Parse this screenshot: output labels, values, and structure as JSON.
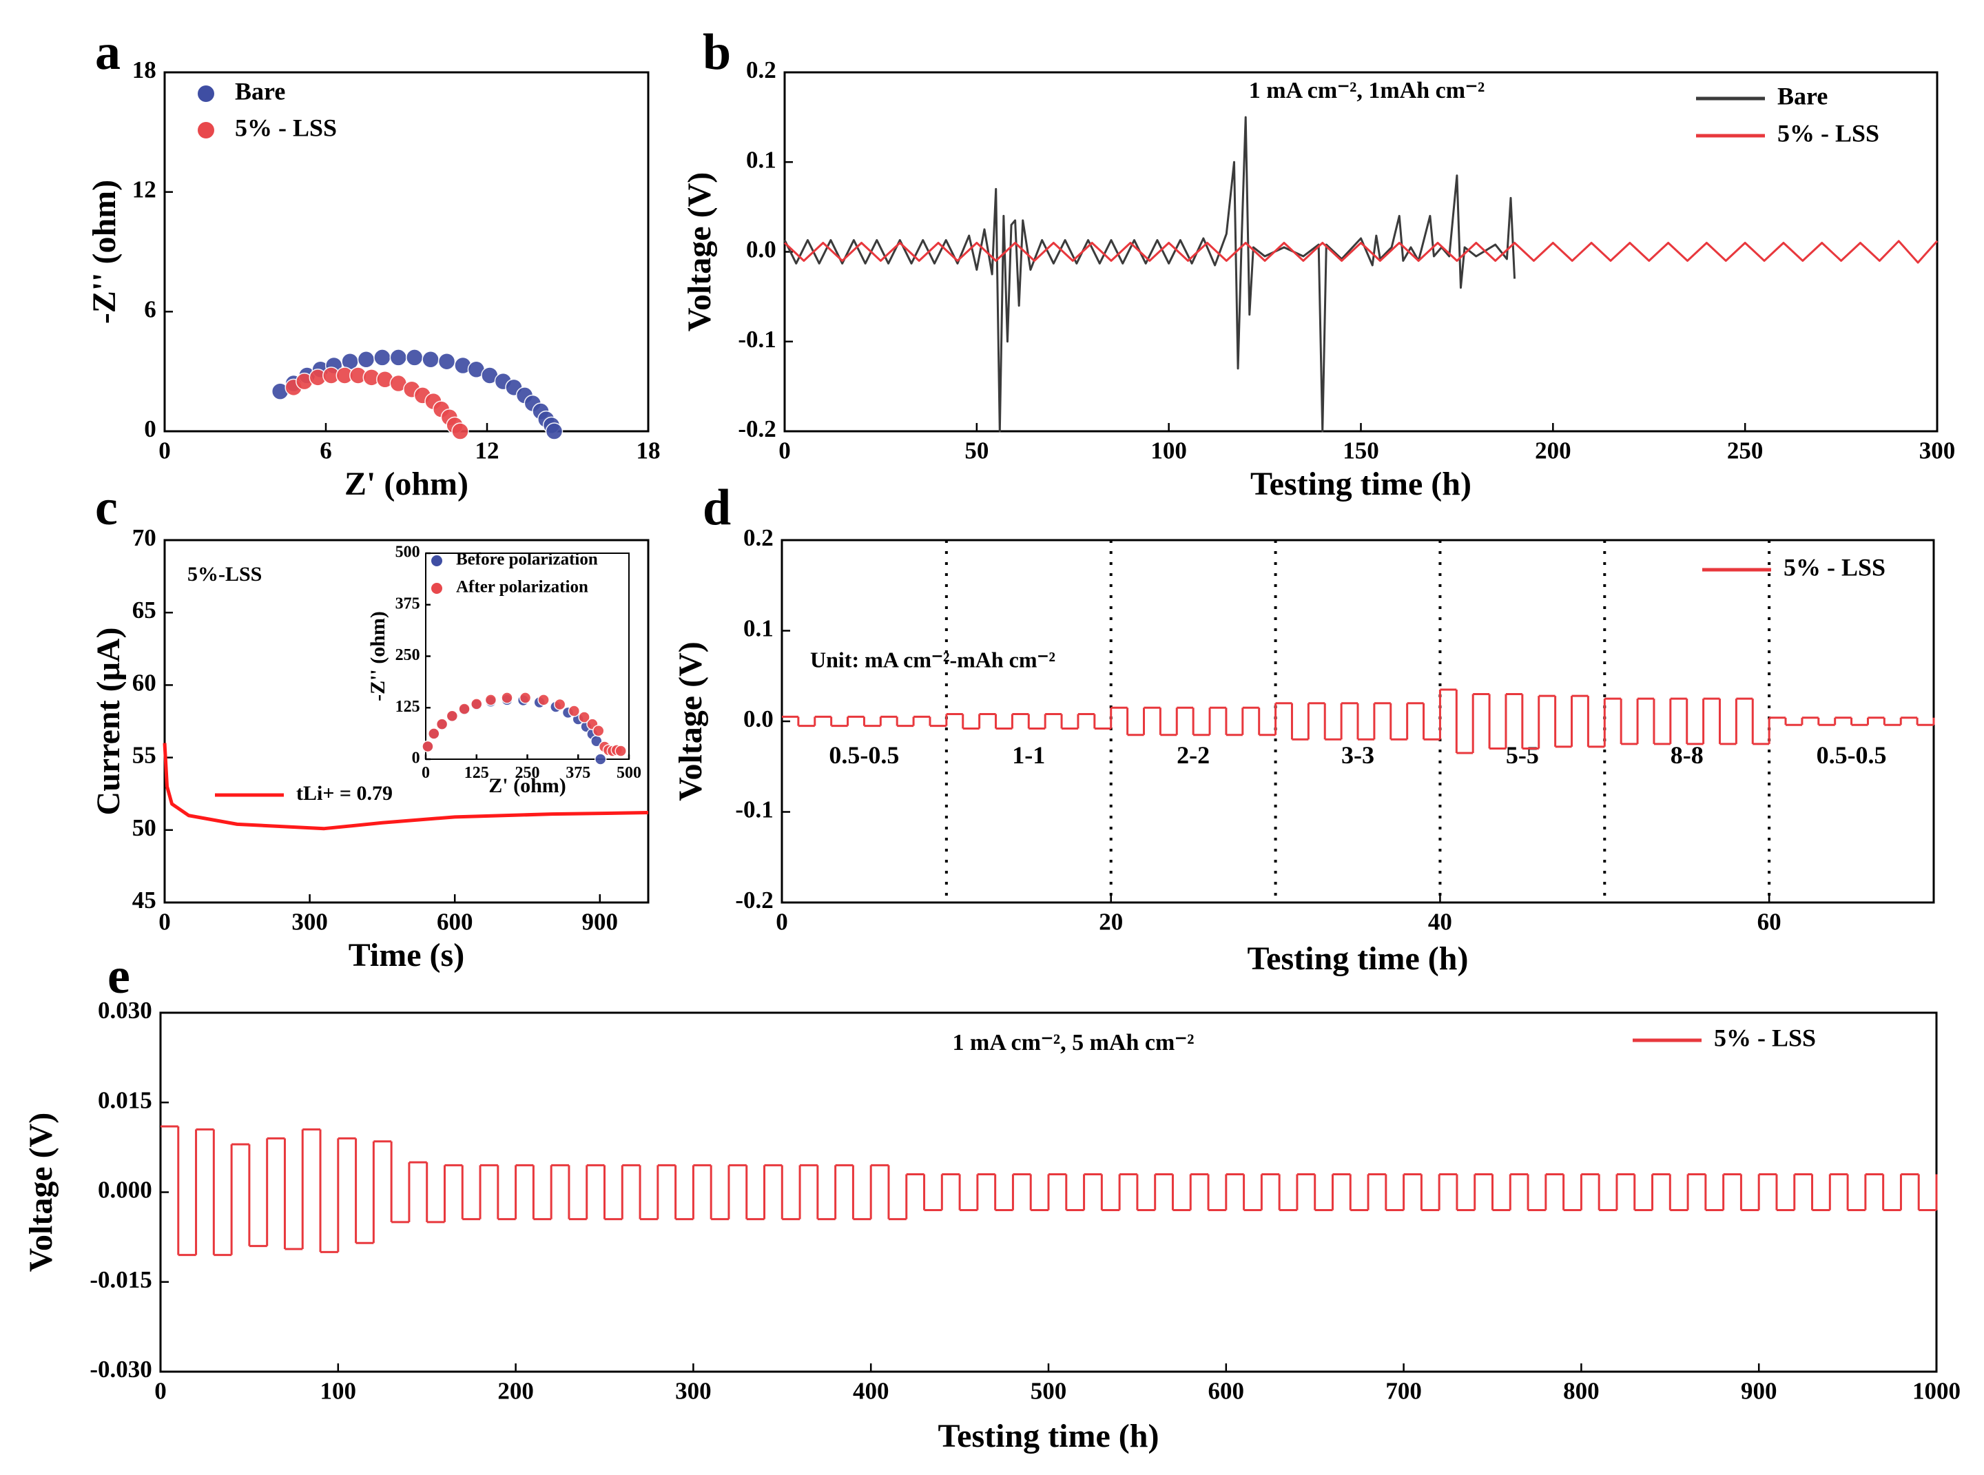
{
  "chart_data": [
    {
      "type": "scatter",
      "label": "a",
      "x_label": "Z' (ohm)",
      "y_label": "-Z'' (ohm)",
      "xlim": [
        0,
        18
      ],
      "xticks": [
        0,
        6,
        12,
        18
      ],
      "ylim": [
        0,
        18
      ],
      "yticks": [
        0,
        6,
        12,
        18
      ],
      "legend": "upper left",
      "series": [
        {
          "name": "Bare",
          "color": "#3f4ea3",
          "x": [
            4.3,
            4.8,
            5.3,
            5.8,
            6.3,
            6.9,
            7.5,
            8.1,
            8.7,
            9.3,
            9.9,
            10.5,
            11.1,
            11.6,
            12.1,
            12.6,
            13.0,
            13.4,
            13.7,
            14.0,
            14.2,
            14.4,
            14.5
          ],
          "values": [
            2.0,
            2.4,
            2.8,
            3.1,
            3.3,
            3.5,
            3.6,
            3.7,
            3.7,
            3.7,
            3.6,
            3.5,
            3.3,
            3.1,
            2.8,
            2.5,
            2.2,
            1.8,
            1.4,
            1.0,
            0.6,
            0.3,
            0.0
          ]
        },
        {
          "name": "5% - LSS",
          "color": "#e8484c",
          "x": [
            4.8,
            5.2,
            5.7,
            6.2,
            6.7,
            7.2,
            7.7,
            8.2,
            8.7,
            9.2,
            9.6,
            10.0,
            10.3,
            10.6,
            10.8,
            11.0
          ],
          "values": [
            2.2,
            2.5,
            2.7,
            2.8,
            2.8,
            2.8,
            2.7,
            2.6,
            2.4,
            2.1,
            1.8,
            1.5,
            1.1,
            0.7,
            0.3,
            0.0
          ]
        }
      ]
    },
    {
      "type": "line",
      "label": "b",
      "x_label": "Testing time (h)",
      "y_label": "Voltage (V)",
      "annotation": "1 mA cm⁻², 1mAh cm⁻²",
      "xlim": [
        0,
        300
      ],
      "xticks": [
        0,
        50,
        100,
        150,
        200,
        250,
        300
      ],
      "ylim": [
        -0.2,
        0.2
      ],
      "yticks": [
        -0.2,
        -0.1,
        {
          "value": 0,
          "label": "0.0"
        },
        0.1,
        0.2
      ],
      "legend": "upper right",
      "series": [
        {
          "name": "Bare",
          "color": "#3b3b3b",
          "x": [
            0,
            3,
            6,
            9,
            12,
            15,
            18,
            21,
            24,
            27,
            30,
            33,
            36,
            39,
            42,
            45,
            48,
            50,
            52,
            54,
            55,
            56,
            57,
            58,
            59,
            60,
            61,
            62,
            64,
            67,
            70,
            73,
            76,
            79,
            82,
            85,
            88,
            91,
            94,
            97,
            100,
            103,
            106,
            109,
            112,
            115,
            117,
            118,
            119,
            120,
            121,
            122,
            125,
            130,
            135,
            139,
            140,
            141,
            145,
            150,
            153,
            154,
            155,
            158,
            160,
            161,
            163,
            165,
            168,
            169,
            171,
            173,
            175,
            176,
            177,
            180,
            185,
            188,
            189,
            190
          ],
          "values": [
            0.013,
            -0.013,
            0.013,
            -0.013,
            0.013,
            -0.013,
            0.013,
            -0.013,
            0.013,
            -0.013,
            0.013,
            -0.013,
            0.013,
            -0.013,
            0.013,
            -0.013,
            0.018,
            -0.02,
            0.025,
            -0.025,
            0.07,
            -0.2,
            0.04,
            -0.1,
            0.03,
            0.035,
            -0.06,
            0.035,
            -0.02,
            0.013,
            -0.013,
            0.013,
            -0.013,
            0.013,
            -0.013,
            0.013,
            -0.013,
            0.013,
            -0.013,
            0.013,
            -0.013,
            0.013,
            -0.013,
            0.015,
            -0.015,
            0.02,
            0.1,
            -0.13,
            0.02,
            0.15,
            -0.07,
            0.005,
            -0.005,
            0.005,
            -0.005,
            0.008,
            -0.2,
            0.008,
            -0.008,
            0.015,
            -0.015,
            0.018,
            -0.008,
            0.005,
            0.04,
            -0.01,
            0.005,
            -0.01,
            0.04,
            -0.005,
            0.005,
            -0.005,
            0.085,
            -0.04,
            0.005,
            -0.005,
            0.008,
            -0.008,
            0.06,
            -0.03
          ]
        },
        {
          "name": "5% - LSS",
          "color": "#e8383d",
          "x": [
            0,
            5,
            10,
            15,
            20,
            25,
            30,
            35,
            40,
            45,
            50,
            55,
            60,
            65,
            70,
            75,
            80,
            85,
            90,
            95,
            100,
            105,
            110,
            115,
            120,
            125,
            130,
            135,
            140,
            145,
            150,
            155,
            160,
            165,
            170,
            175,
            180,
            185,
            190,
            195,
            200,
            205,
            210,
            215,
            220,
            225,
            230,
            235,
            240,
            245,
            250,
            255,
            260,
            265,
            270,
            275,
            280,
            285,
            290,
            295,
            300
          ],
          "values": [
            0.01,
            -0.01,
            0.01,
            -0.01,
            0.01,
            -0.01,
            0.01,
            -0.01,
            0.01,
            -0.01,
            0.01,
            -0.01,
            0.01,
            -0.01,
            0.01,
            -0.01,
            0.01,
            -0.01,
            0.01,
            -0.01,
            0.01,
            -0.01,
            0.01,
            -0.01,
            0.01,
            -0.01,
            0.01,
            -0.01,
            0.01,
            -0.01,
            0.01,
            -0.01,
            0.01,
            -0.01,
            0.01,
            -0.01,
            0.01,
            -0.01,
            0.01,
            -0.01,
            0.01,
            -0.01,
            0.01,
            -0.01,
            0.01,
            -0.01,
            0.01,
            -0.01,
            0.01,
            -0.01,
            0.01,
            -0.01,
            0.01,
            -0.01,
            0.01,
            -0.01,
            0.01,
            -0.01,
            0.012,
            -0.012,
            0.012
          ]
        }
      ]
    },
    {
      "type": "line",
      "label": "c",
      "x_label": "Time (s)",
      "y_label": "Current (μA)",
      "annotation": "5%-LSS",
      "xlim": [
        0,
        1000
      ],
      "xticks": [
        0,
        300,
        600,
        900
      ],
      "ylim": [
        45,
        70
      ],
      "yticks": [
        45,
        50,
        55,
        60,
        65,
        70
      ],
      "legend": "lower left",
      "series": [
        {
          "name": "tLi+ = 0.79",
          "color": "#ff1a1a",
          "x": [
            0,
            5,
            15,
            50,
            150,
            330,
            450,
            600,
            800,
            1000
          ],
          "values": [
            56,
            53,
            51.8,
            51,
            50.4,
            50.1,
            50.5,
            50.9,
            51.1,
            51.2
          ]
        }
      ]
    },
    {
      "type": "scatter",
      "x_label": "Z' (ohm)",
      "y_label": "-Z'' (ohm)",
      "xlim": [
        0,
        500
      ],
      "xticks": [
        0,
        125,
        250,
        375,
        500
      ],
      "ylim": [
        0,
        500
      ],
      "yticks": [
        0,
        125,
        250,
        375,
        500
      ],
      "legend": "upper right",
      "series": [
        {
          "name": "Before polarization",
          "color": "#3f4ea3",
          "x": [
            5,
            20,
            40,
            65,
            95,
            125,
            160,
            200,
            240,
            280,
            320,
            350,
            375,
            395,
            410,
            420,
            430
          ],
          "values": [
            31,
            61,
            84,
            104,
            120,
            132,
            140,
            144,
            143,
            138,
            127,
            113,
            97,
            79,
            61,
            44,
            0
          ]
        },
        {
          "name": "After polarization",
          "color": "#e8484c",
          "x": [
            5,
            20,
            40,
            65,
            95,
            125,
            160,
            200,
            245,
            290,
            330,
            365,
            390,
            410,
            425,
            440,
            450,
            460,
            470,
            480
          ],
          "values": [
            31,
            62,
            85,
            105,
            122,
            134,
            144,
            149,
            149,
            144,
            133,
            117,
            102,
            85,
            69,
            30,
            22,
            20,
            22,
            20
          ]
        }
      ]
    },
    {
      "type": "line",
      "step": "post",
      "label": "d",
      "x_label": "Testing time (h)",
      "y_label": "Voltage (V)",
      "annotation": "Unit: mA cm⁻²-mAh cm⁻²",
      "xlim": [
        0,
        70
      ],
      "xticks": [
        0,
        20,
        40,
        60
      ],
      "ylim": [
        -0.2,
        0.2
      ],
      "yticks": [
        -0.2,
        -0.1,
        {
          "value": 0,
          "label": "0.0"
        },
        0.1,
        0.2
      ],
      "legend": "upper right",
      "vlines": [
        10,
        20,
        30,
        40,
        50,
        60
      ],
      "segment_labels": [
        "0.5-0.5",
        "1-1",
        "2-2",
        "3-3",
        "5-5",
        "8-8",
        "0.5-0.5"
      ],
      "series": [
        {
          "name": "5% - LSS",
          "color": "#e8383d",
          "x": [
            0,
            1,
            2,
            3,
            4,
            5,
            6,
            7,
            8,
            9,
            10,
            11,
            12,
            13,
            14,
            15,
            16,
            17,
            18,
            19,
            20,
            21,
            22,
            23,
            24,
            25,
            26,
            27,
            28,
            29,
            30,
            31,
            32,
            33,
            34,
            35,
            36,
            37,
            38,
            39,
            40,
            41,
            42,
            43,
            44,
            45,
            46,
            47,
            48,
            49,
            50,
            51,
            52,
            53,
            54,
            55,
            56,
            57,
            58,
            59,
            60,
            61,
            62,
            63,
            64,
            65,
            66,
            67,
            68,
            69,
            70
          ],
          "values": [
            0.005,
            -0.005,
            0.005,
            -0.005,
            0.005,
            -0.005,
            0.005,
            -0.005,
            0.005,
            -0.005,
            0.008,
            -0.008,
            0.008,
            -0.008,
            0.008,
            -0.008,
            0.008,
            -0.008,
            0.008,
            -0.008,
            0.015,
            -0.015,
            0.015,
            -0.015,
            0.015,
            -0.015,
            0.015,
            -0.015,
            0.015,
            -0.015,
            0.02,
            -0.02,
            0.02,
            -0.02,
            0.02,
            -0.02,
            0.02,
            -0.02,
            0.02,
            -0.02,
            0.035,
            -0.035,
            0.03,
            -0.03,
            0.03,
            -0.03,
            0.028,
            -0.028,
            0.028,
            -0.028,
            0.025,
            -0.025,
            0.025,
            -0.025,
            0.025,
            -0.025,
            0.025,
            -0.025,
            0.025,
            -0.025,
            0.004,
            -0.004,
            0.004,
            -0.004,
            0.004,
            -0.004,
            0.004,
            -0.004,
            0.004,
            -0.004,
            0.004
          ]
        }
      ]
    },
    {
      "type": "line",
      "step": "post",
      "label": "e",
      "x_label": "Testing time (h)",
      "y_label": "Voltage (V)",
      "annotation": "1 mA cm⁻², 5 mAh cm⁻²",
      "xlim": [
        0,
        1000
      ],
      "xticks": [
        0,
        100,
        200,
        300,
        400,
        500,
        600,
        700,
        800,
        900,
        1000
      ],
      "ylim": [
        -0.03,
        0.03
      ],
      "yticks": [
        {
          "value": -0.03,
          "label": "-0.030"
        },
        {
          "value": -0.015,
          "label": "-0.015"
        },
        {
          "value": 0,
          "label": "0.000"
        },
        {
          "value": 0.015,
          "label": "0.015"
        },
        {
          "value": 0.03,
          "label": "0.030"
        }
      ],
      "legend": "upper right",
      "series": [
        {
          "name": "5% - LSS",
          "color": "#e8383d",
          "x": [
            0,
            10,
            20,
            30,
            40,
            50,
            60,
            70,
            80,
            90,
            100,
            110,
            120,
            130,
            140,
            150,
            160,
            170,
            180,
            190,
            200,
            210,
            220,
            230,
            240,
            250,
            260,
            270,
            280,
            290,
            300,
            310,
            320,
            330,
            340,
            350,
            360,
            370,
            380,
            390,
            400,
            410,
            420,
            430,
            440,
            450,
            460,
            470,
            480,
            490,
            500,
            510,
            520,
            530,
            540,
            550,
            560,
            570,
            580,
            590,
            600,
            610,
            620,
            630,
            640,
            650,
            660,
            670,
            680,
            690,
            700,
            710,
            720,
            730,
            740,
            750,
            760,
            770,
            780,
            790,
            800,
            810,
            820,
            830,
            840,
            850,
            860,
            870,
            880,
            890,
            900,
            910,
            920,
            930,
            940,
            950,
            960,
            970,
            980,
            990,
            1000
          ],
          "values": [
            0.011,
            -0.0105,
            0.0105,
            -0.0105,
            0.008,
            -0.009,
            0.009,
            -0.0095,
            0.0105,
            -0.01,
            0.009,
            -0.0085,
            0.0085,
            -0.005,
            0.005,
            -0.005,
            0.0045,
            -0.0045,
            0.0045,
            -0.0045,
            0.0045,
            -0.0045,
            0.0045,
            -0.0045,
            0.0045,
            -0.0045,
            0.0045,
            -0.0045,
            0.0045,
            -0.0045,
            0.0045,
            -0.0045,
            0.0045,
            -0.0045,
            0.0045,
            -0.0045,
            0.0045,
            -0.0045,
            0.0045,
            -0.0045,
            0.0045,
            -0.0045,
            0.003,
            -0.003,
            0.003,
            -0.003,
            0.003,
            -0.003,
            0.003,
            -0.003,
            0.003,
            -0.003,
            0.003,
            -0.003,
            0.003,
            -0.003,
            0.003,
            -0.003,
            0.003,
            -0.003,
            0.003,
            -0.003,
            0.003,
            -0.003,
            0.003,
            -0.003,
            0.003,
            -0.003,
            0.003,
            -0.003,
            0.003,
            -0.003,
            0.003,
            -0.003,
            0.003,
            -0.003,
            0.003,
            -0.003,
            0.003,
            -0.003,
            0.003,
            -0.003,
            0.003,
            -0.003,
            0.003,
            -0.003,
            0.003,
            -0.003,
            0.003,
            -0.003,
            0.003,
            -0.003,
            0.003,
            -0.003,
            0.003,
            -0.003,
            0.003,
            -0.003,
            0.003,
            -0.003,
            0.003
          ]
        }
      ]
    }
  ]
}
